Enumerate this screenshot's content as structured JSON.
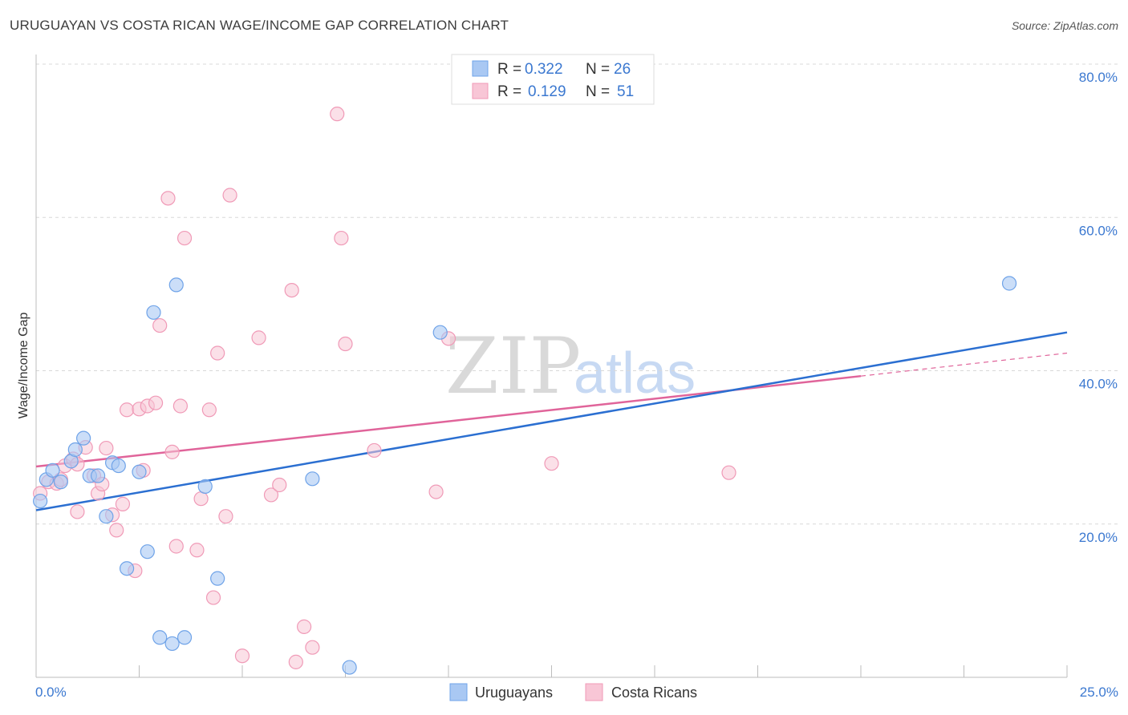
{
  "title": "URUGUAYAN VS COSTA RICAN WAGE/INCOME GAP CORRELATION CHART",
  "source": "Source: ZipAtlas.com",
  "watermark": {
    "part1": "ZIP",
    "part2": "atlas"
  },
  "colors": {
    "blue": "#6fa3e8",
    "blue_fill": "#a9c8f3",
    "blue_line": "#2b6fd1",
    "pink": "#f09ab7",
    "pink_fill": "#f8c6d6",
    "pink_line": "#e0649a",
    "axis_text": "#3b78d0",
    "grid": "#d8d8d8"
  },
  "legend": {
    "rows": [
      {
        "r_label": "R = ",
        "r_value": "0.322",
        "n_label": "N = ",
        "n_value": "26"
      },
      {
        "r_label": "R = ",
        "r_value": "0.129",
        "n_label": "N = ",
        "n_value": "51"
      }
    ]
  },
  "bottom_legend": {
    "items": [
      "Uruguayans",
      "Costa Ricans"
    ]
  },
  "chart_data": {
    "type": "scatter",
    "xlabel": "",
    "ylabel": "Wage/Income Gap",
    "xlim": [
      0,
      25
    ],
    "ylim": [
      0,
      80
    ],
    "x_tick_labels": [
      "0.0%",
      "25.0%"
    ],
    "y_ticks": [
      20,
      40,
      60,
      80
    ],
    "y_tick_labels": [
      "20.0%",
      "40.0%",
      "60.0%",
      "80.0%"
    ],
    "grid": true,
    "series": [
      {
        "name": "Uruguayans",
        "r": 0.322,
        "n": 26,
        "trend": {
          "x0": 0,
          "y0": 21.8,
          "x1": 25,
          "y1": 45.0
        },
        "points": [
          [
            0.1,
            23.0
          ],
          [
            0.25,
            25.8
          ],
          [
            0.4,
            27.0
          ],
          [
            0.6,
            25.5
          ],
          [
            0.85,
            28.2
          ],
          [
            0.95,
            29.7
          ],
          [
            1.15,
            31.2
          ],
          [
            1.3,
            26.3
          ],
          [
            1.5,
            26.3
          ],
          [
            1.7,
            21.0
          ],
          [
            1.85,
            28.0
          ],
          [
            2.0,
            27.6
          ],
          [
            2.2,
            14.2
          ],
          [
            2.5,
            26.8
          ],
          [
            2.7,
            16.4
          ],
          [
            2.85,
            47.6
          ],
          [
            3.0,
            5.2
          ],
          [
            3.3,
            4.4
          ],
          [
            3.4,
            51.2
          ],
          [
            3.6,
            5.2
          ],
          [
            4.1,
            24.9
          ],
          [
            4.4,
            12.9
          ],
          [
            6.7,
            25.9
          ],
          [
            7.6,
            1.3
          ],
          [
            9.8,
            45.0
          ],
          [
            23.6,
            51.4
          ]
        ]
      },
      {
        "name": "Costa Ricans",
        "r": 0.129,
        "n": 51,
        "trend": {
          "x0": 0,
          "y0": 27.5,
          "x1": 20,
          "y1": 39.3
        },
        "trend_dashed": {
          "x0": 20,
          "y0": 39.3,
          "x1": 25,
          "y1": 42.3
        },
        "points": [
          [
            0.1,
            24.0
          ],
          [
            0.3,
            25.5
          ],
          [
            0.5,
            25.3
          ],
          [
            0.6,
            25.8
          ],
          [
            0.7,
            27.6
          ],
          [
            0.9,
            28.5
          ],
          [
            1.0,
            27.8
          ],
          [
            1.0,
            21.6
          ],
          [
            1.2,
            30.0
          ],
          [
            1.4,
            26.3
          ],
          [
            1.5,
            24.0
          ],
          [
            1.6,
            25.2
          ],
          [
            1.7,
            29.9
          ],
          [
            1.85,
            21.2
          ],
          [
            1.95,
            19.2
          ],
          [
            2.1,
            22.6
          ],
          [
            2.2,
            34.9
          ],
          [
            2.4,
            13.9
          ],
          [
            2.5,
            35.0
          ],
          [
            2.6,
            27.0
          ],
          [
            2.7,
            35.4
          ],
          [
            2.9,
            35.8
          ],
          [
            3.0,
            45.9
          ],
          [
            3.2,
            62.5
          ],
          [
            3.3,
            29.4
          ],
          [
            3.4,
            17.1
          ],
          [
            3.5,
            35.4
          ],
          [
            3.6,
            57.3
          ],
          [
            3.9,
            16.6
          ],
          [
            4.0,
            23.3
          ],
          [
            4.2,
            34.9
          ],
          [
            4.3,
            10.4
          ],
          [
            4.4,
            42.3
          ],
          [
            4.6,
            21.0
          ],
          [
            4.7,
            62.9
          ],
          [
            5.0,
            2.8
          ],
          [
            5.4,
            44.3
          ],
          [
            5.7,
            23.8
          ],
          [
            5.9,
            25.1
          ],
          [
            6.2,
            50.5
          ],
          [
            6.3,
            2.0
          ],
          [
            6.5,
            6.6
          ],
          [
            6.7,
            3.9
          ],
          [
            7.3,
            73.5
          ],
          [
            7.4,
            57.3
          ],
          [
            7.5,
            43.5
          ],
          [
            8.2,
            29.6
          ],
          [
            9.7,
            24.2
          ],
          [
            10.0,
            44.2
          ],
          [
            12.5,
            27.9
          ],
          [
            16.8,
            26.7
          ]
        ]
      }
    ]
  }
}
